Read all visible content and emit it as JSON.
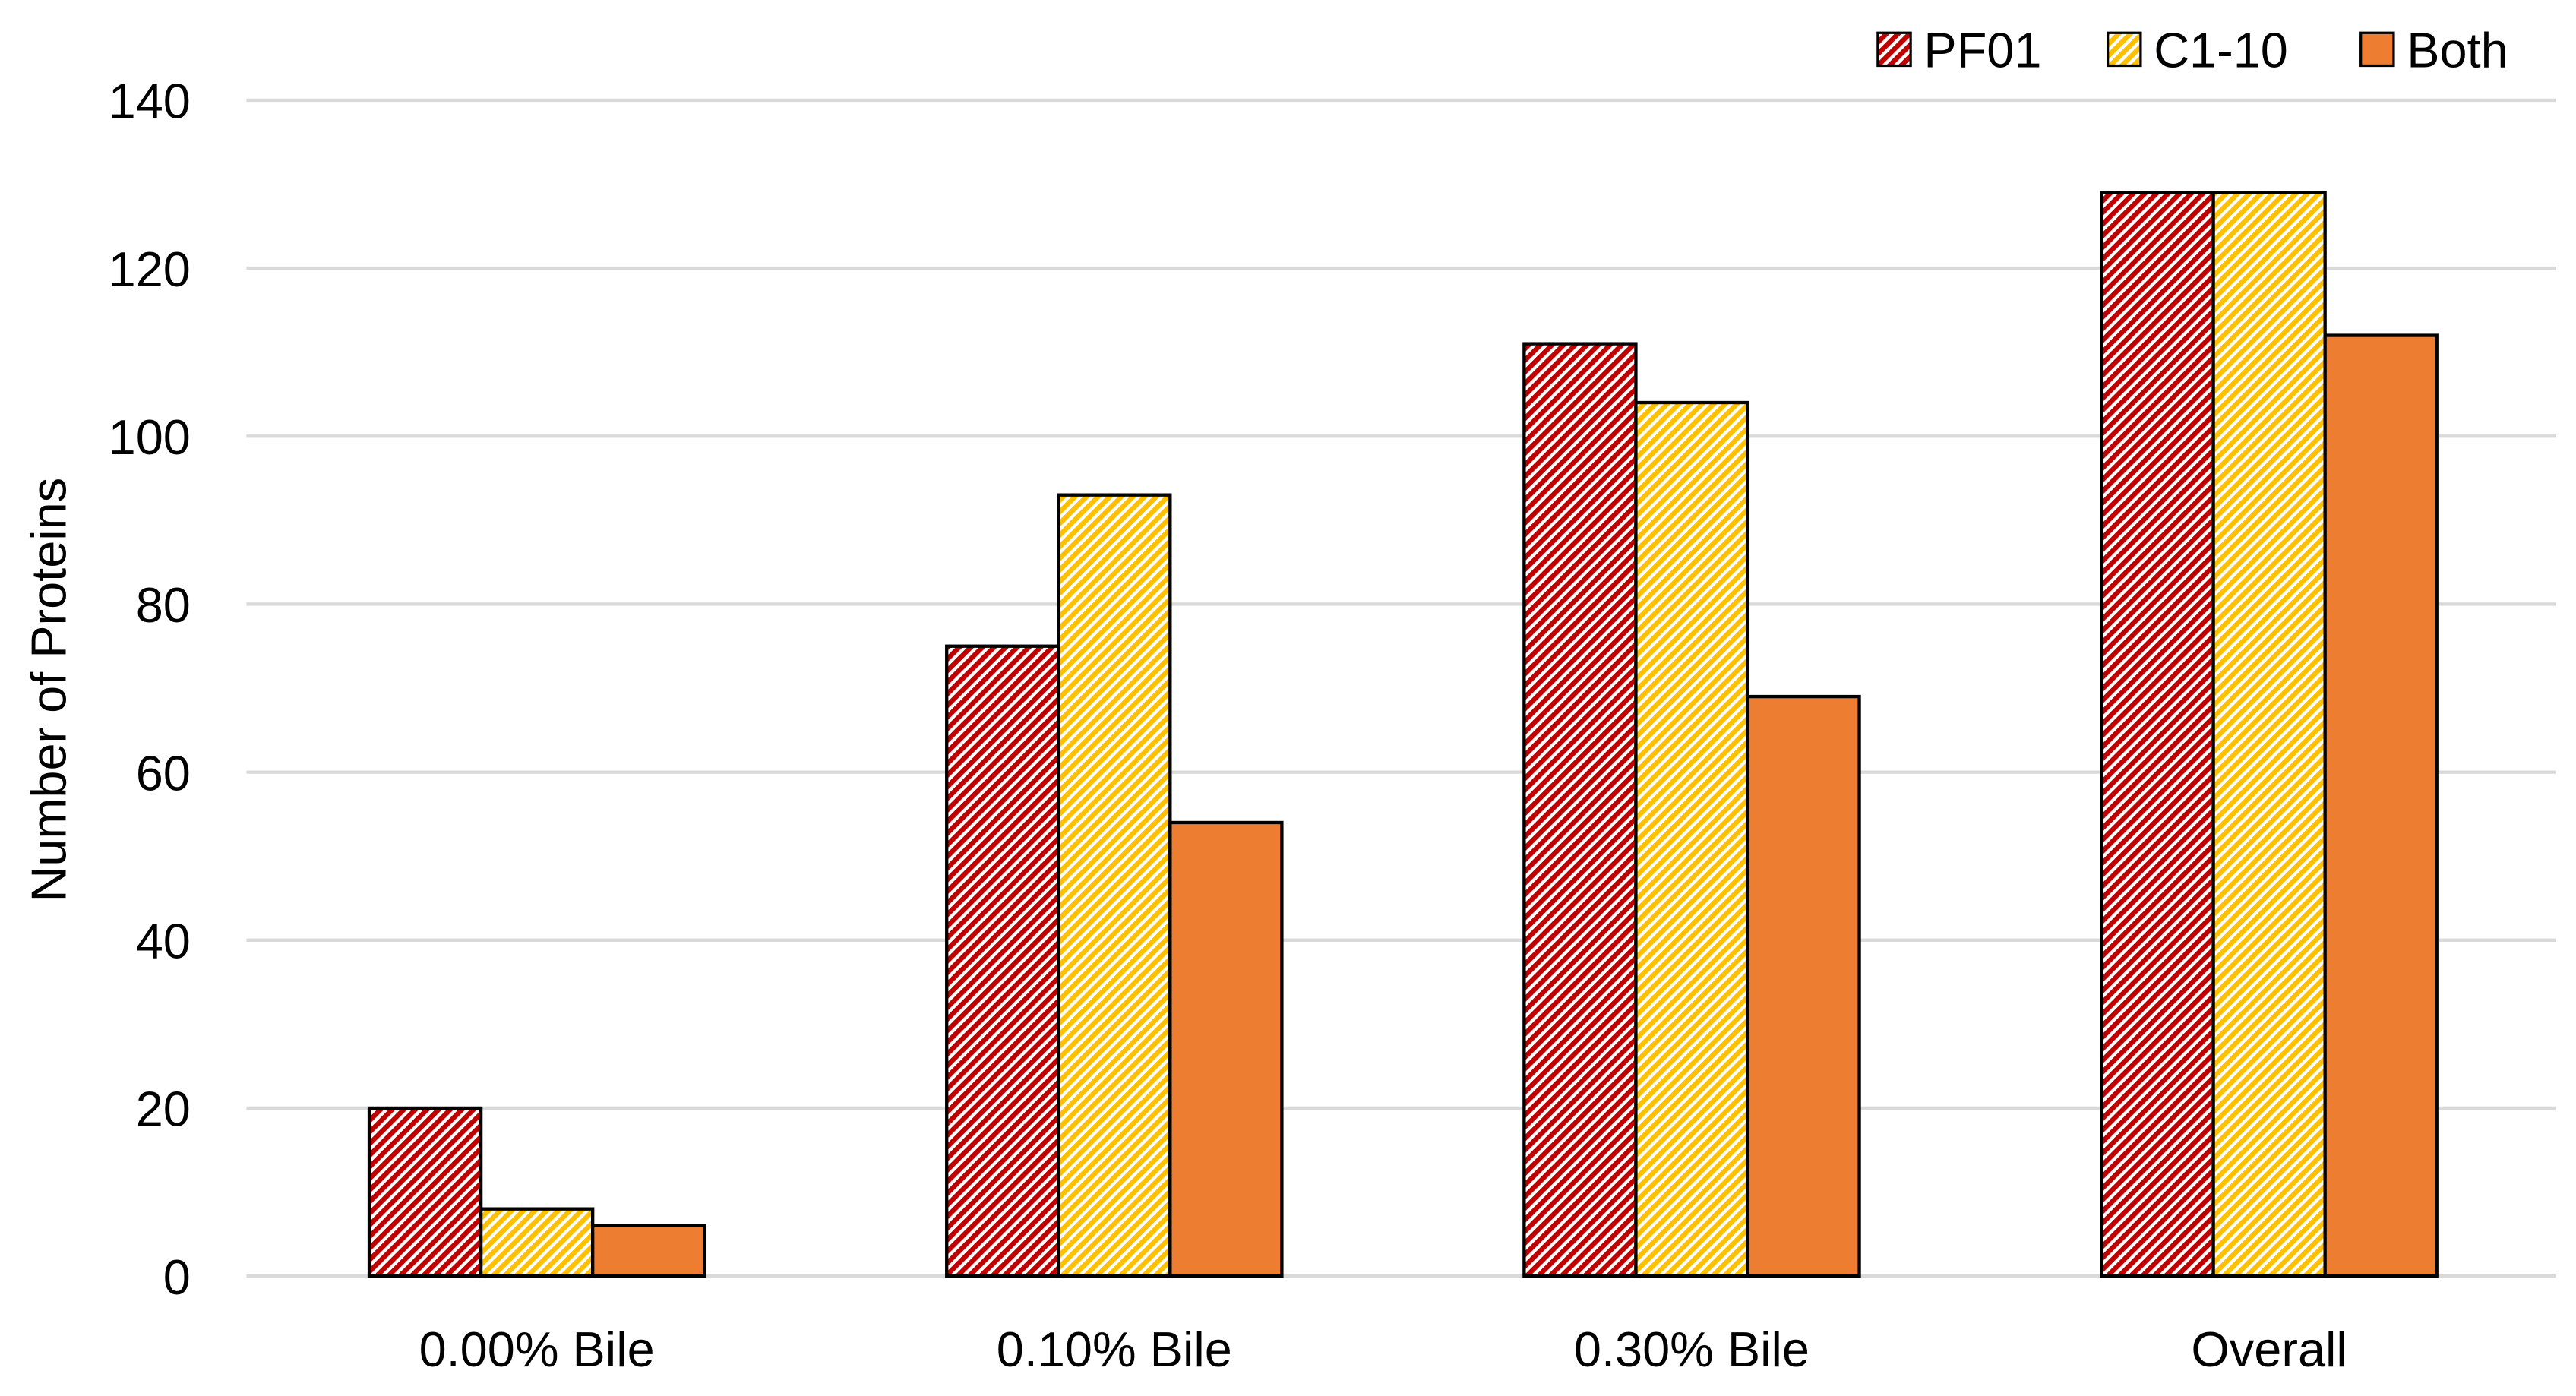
{
  "chart_data": {
    "type": "bar",
    "title": "",
    "xlabel": "",
    "ylabel": "Number of Proteins",
    "ylim": [
      0,
      140
    ],
    "yticks": [
      0,
      20,
      40,
      60,
      80,
      100,
      120,
      140
    ],
    "grid": true,
    "legend_placement": "top-right",
    "categories": [
      "0.00% Bile",
      "0.10% Bile",
      "0.30% Bile",
      "Overall"
    ],
    "series": [
      {
        "name": "PF01",
        "values": [
          20,
          75,
          111,
          129
        ],
        "color": "#c00000",
        "pattern": "diagonal-hatch"
      },
      {
        "name": "C1-10",
        "values": [
          8,
          93,
          104,
          129
        ],
        "color": "#ffc000",
        "pattern": "diagonal-hatch"
      },
      {
        "name": "Both",
        "values": [
          6,
          54,
          69,
          112
        ],
        "color": "#ed7d31",
        "pattern": "solid"
      }
    ]
  }
}
